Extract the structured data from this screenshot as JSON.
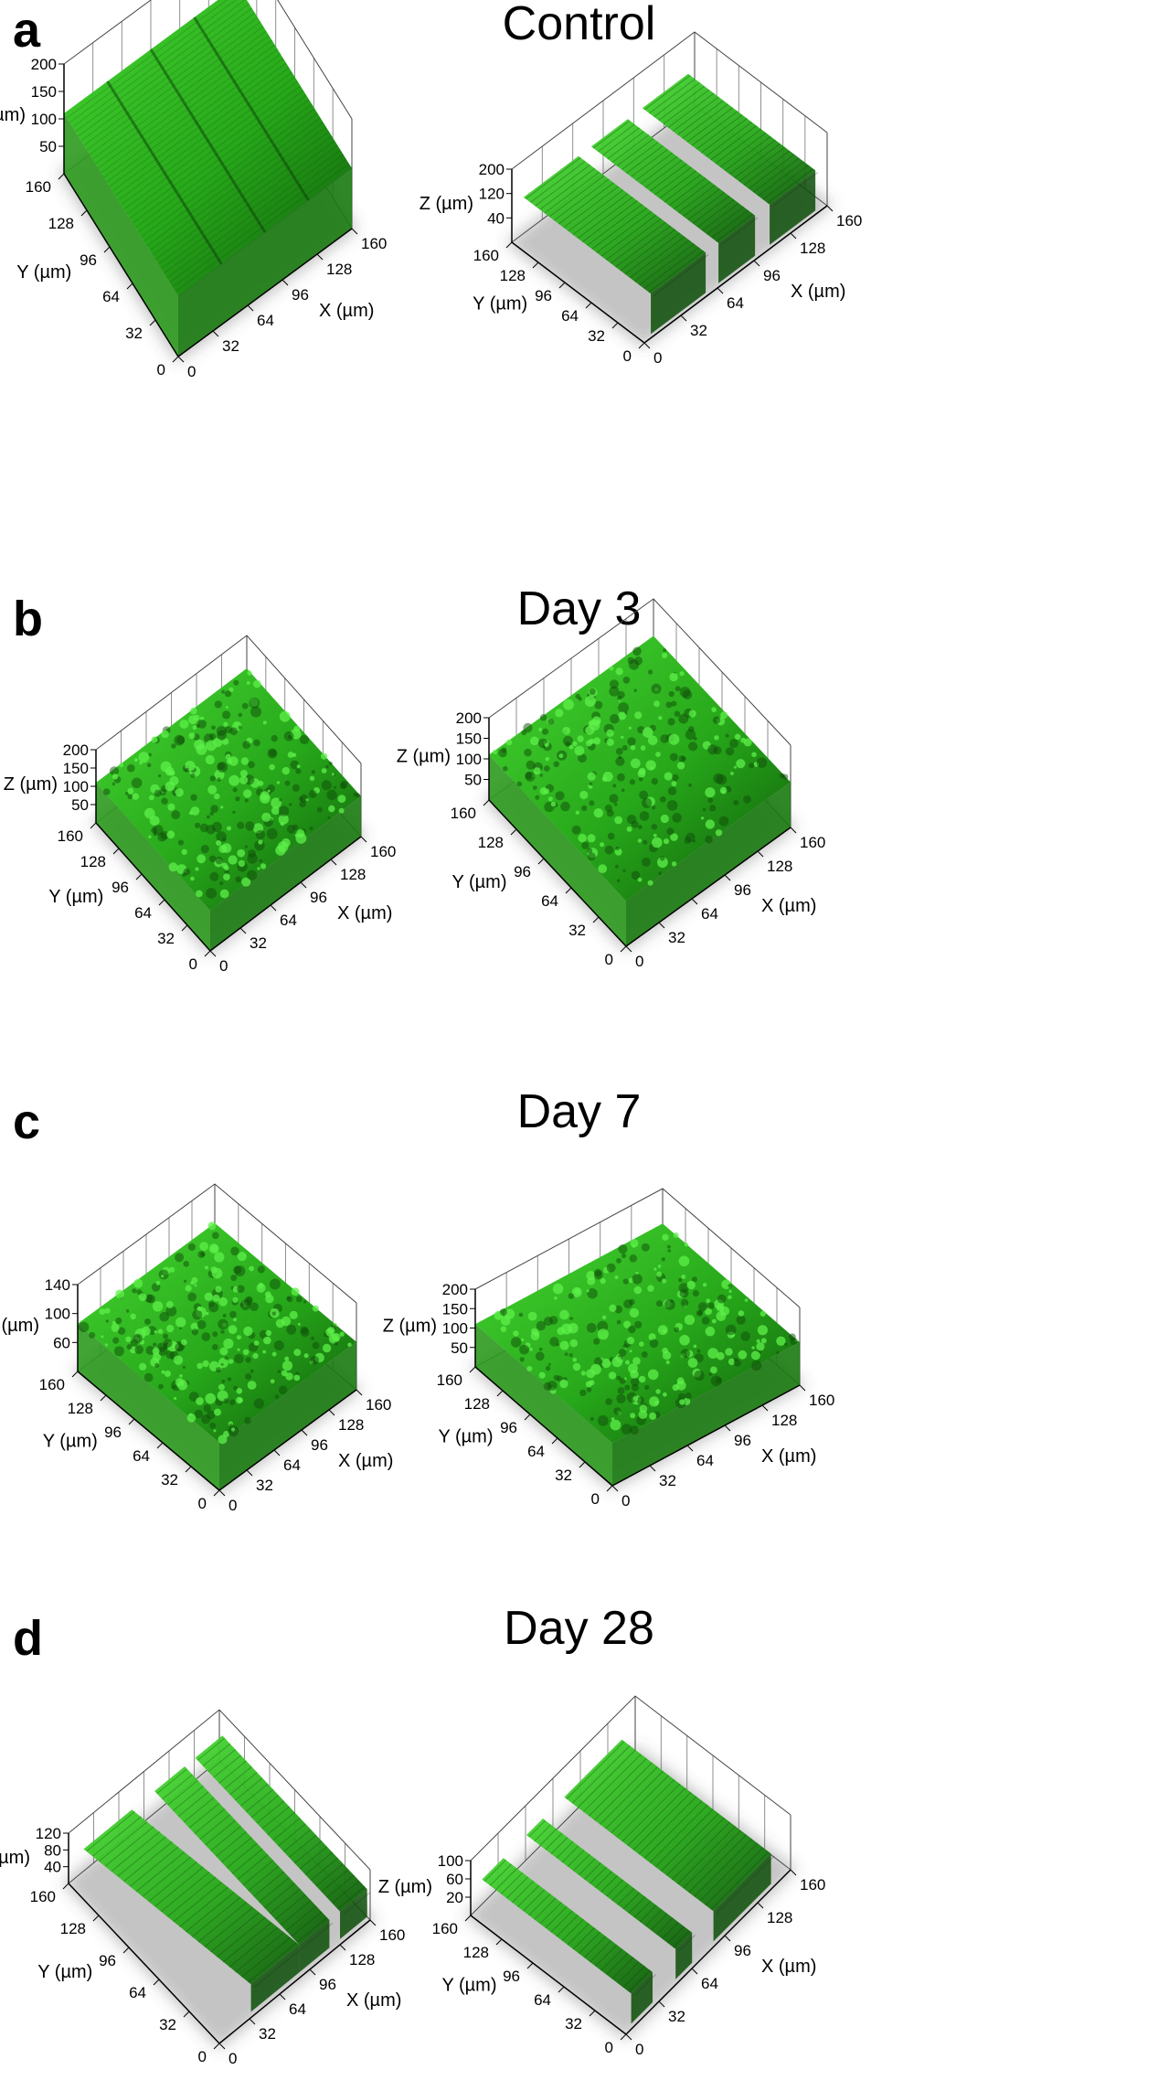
{
  "colors": {
    "fluorescence": "#2fbf1f",
    "fluorescence_dark": "#0d4d08",
    "axis": "#000000"
  },
  "panels": [
    {
      "letter": "a",
      "title": "Control",
      "plots": [
        {
          "z_ticks": [
            "200",
            "150",
            "100",
            "50"
          ],
          "y_ticks": [
            "160",
            "128",
            "96",
            "64",
            "32",
            "0"
          ],
          "x_ticks": [
            "0",
            "32",
            "64",
            "96",
            "128",
            "160"
          ],
          "z_label": "Z (µm)",
          "y_label": "Y (µm)",
          "x_label": "X (µm)"
        },
        {
          "z_ticks": [
            "200",
            "120",
            "40"
          ],
          "y_ticks": [
            "160",
            "128",
            "96",
            "64",
            "32",
            "0"
          ],
          "x_ticks": [
            "0",
            "32",
            "64",
            "96",
            "128",
            "160"
          ],
          "z_label": "Z (µm)",
          "y_label": "Y (µm)",
          "x_label": "X (µm)"
        }
      ]
    },
    {
      "letter": "b",
      "title": "Day 3",
      "plots": [
        {
          "z_ticks": [
            "200",
            "150",
            "100",
            "50"
          ],
          "y_ticks": [
            "160",
            "128",
            "96",
            "64",
            "32",
            "0"
          ],
          "x_ticks": [
            "0",
            "32",
            "64",
            "96",
            "128",
            "160"
          ],
          "z_label": "Z (µm)",
          "y_label": "Y (µm)",
          "x_label": "X (µm)"
        },
        {
          "z_ticks": [
            "200",
            "150",
            "100",
            "50"
          ],
          "y_ticks": [
            "160",
            "128",
            "96",
            "64",
            "32",
            "0"
          ],
          "x_ticks": [
            "0",
            "32",
            "64",
            "96",
            "128",
            "160"
          ],
          "z_label": "Z (µm)",
          "y_label": "Y (µm)",
          "x_label": "X (µm)"
        }
      ]
    },
    {
      "letter": "c",
      "title": "Day 7",
      "plots": [
        {
          "z_ticks": [
            "140",
            "100",
            "60"
          ],
          "y_ticks": [
            "160",
            "128",
            "96",
            "64",
            "32",
            "0"
          ],
          "x_ticks": [
            "0",
            "32",
            "64",
            "96",
            "128",
            "160"
          ],
          "z_label": "Z (µm)",
          "y_label": "Y (µm)",
          "x_label": "X (µm)"
        },
        {
          "z_ticks": [
            "200",
            "150",
            "100",
            "50"
          ],
          "y_ticks": [
            "160",
            "128",
            "96",
            "64",
            "32",
            "0"
          ],
          "x_ticks": [
            "0",
            "32",
            "64",
            "96",
            "128",
            "160"
          ],
          "z_label": "Z (µm)",
          "y_label": "Y (µm)",
          "x_label": "X (µm)"
        }
      ]
    },
    {
      "letter": "d",
      "title": "Day 28",
      "plots": [
        {
          "z_ticks": [
            "120",
            "80",
            "40"
          ],
          "y_ticks": [
            "160",
            "128",
            "96",
            "64",
            "32",
            "0"
          ],
          "x_ticks": [
            "0",
            "32",
            "64",
            "96",
            "128",
            "160"
          ],
          "z_label": "Z (µm)",
          "y_label": "Y (µm)",
          "x_label": "X (µm)"
        },
        {
          "z_ticks": [
            "100",
            "60",
            "20"
          ],
          "y_ticks": [
            "160",
            "128",
            "96",
            "64",
            "32",
            "0"
          ],
          "x_ticks": [
            "0",
            "32",
            "64",
            "96",
            "128",
            "160"
          ],
          "z_label": "Z (µm)",
          "y_label": "Y (µm)",
          "x_label": "X (µm)"
        }
      ]
    }
  ]
}
